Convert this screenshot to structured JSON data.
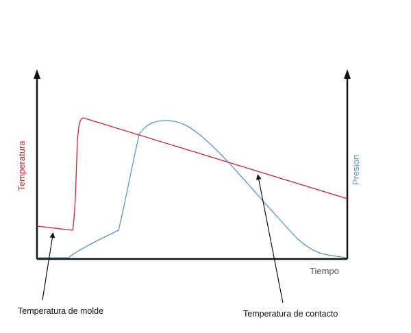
{
  "axes": {
    "left_label": "Temperatura",
    "right_label": "Presion",
    "x_label": "Tiempo"
  },
  "annotations": {
    "mold_temperature": "Temperatura de molde",
    "contact_temperature": "Temperatura de contacto"
  },
  "colors": {
    "temperature": "#c0262c",
    "pressure": "#5b93c4",
    "axes": "#111111",
    "x_label": "#555555"
  }
}
